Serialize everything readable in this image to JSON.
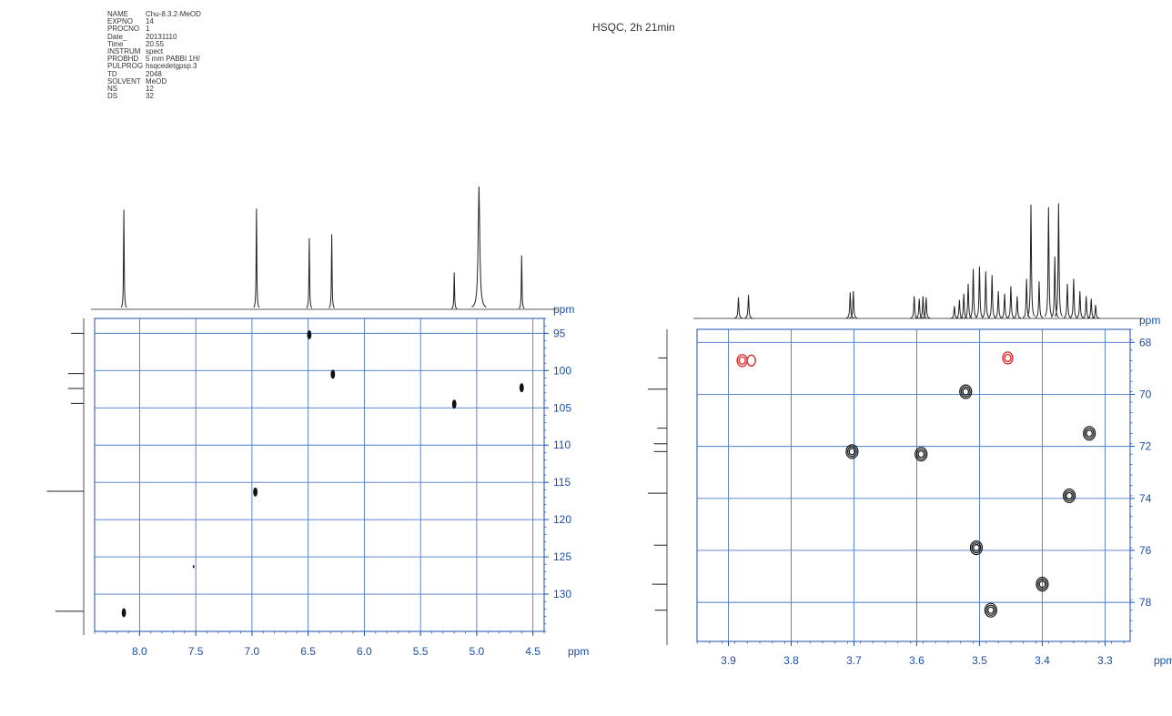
{
  "header": {
    "title": "HSQC, 2h 21min",
    "params": [
      {
        "key": "NAME",
        "value": "Chu-8.3.2-MeOD"
      },
      {
        "key": "EXPNO",
        "value": "14"
      },
      {
        "key": "PROCNO",
        "value": "1"
      },
      {
        "key": "Date_",
        "value": "20131110"
      },
      {
        "key": "Time",
        "value": "20.55"
      },
      {
        "key": "INSTRUM",
        "value": "spect"
      },
      {
        "key": "PROBHD",
        "value": "5 mm PABBI 1H/"
      },
      {
        "key": "PULPROG",
        "value": "hsqcedetgpsp.3"
      },
      {
        "key": "TD",
        "value": "2048"
      },
      {
        "key": "SOLVENT",
        "value": "MeOD"
      },
      {
        "key": "NS",
        "value": "12"
      },
      {
        "key": "DS",
        "value": "32"
      }
    ]
  },
  "colors": {
    "axis": "#1a4fa8",
    "grid": "#4a78c8",
    "contour": "#111111",
    "negative_contour": "#e03030",
    "trace": "#222222"
  },
  "chart_data": [
    {
      "type": "scatter",
      "xlabel": "ppm",
      "ylabel": "ppm",
      "xlim": [
        8.4,
        4.4
      ],
      "ylim": [
        93,
        135
      ],
      "xticks": [
        8.0,
        7.5,
        7.0,
        6.5,
        6.0,
        5.5,
        5.0,
        4.5
      ],
      "xtick_labels": [
        "8.0",
        "7.5",
        "7.0",
        "6.5",
        "6.0",
        "5.5",
        "5.0",
        "4.5"
      ],
      "yticks": [
        95,
        100,
        105,
        110,
        115,
        120,
        125,
        130
      ],
      "ytick_labels": [
        "95",
        "100",
        "105",
        "110",
        "115",
        "120",
        "125",
        "130"
      ],
      "grid": true,
      "series": [
        {
          "points": [
            {
              "x": 8.14,
              "y": 132.5
            },
            {
              "x": 6.97,
              "y": 116.3
            },
            {
              "x": 6.49,
              "y": 95.2
            },
            {
              "x": 6.28,
              "y": 100.5
            },
            {
              "x": 5.2,
              "y": 104.5
            },
            {
              "x": 4.6,
              "y": 102.3
            },
            {
              "x": 7.52,
              "y": 126.3
            }
          ]
        }
      ],
      "proton_trace": [
        {
          "x": 8.14,
          "h": 0.81
        },
        {
          "x": 6.96,
          "h": 0.82
        },
        {
          "x": 6.49,
          "h": 0.58
        },
        {
          "x": 6.29,
          "h": 0.61
        },
        {
          "x": 5.2,
          "h": 0.3
        },
        {
          "x": 4.98,
          "h": 1.0
        },
        {
          "x": 4.6,
          "h": 0.44
        }
      ],
      "carbon_trace": [
        {
          "y": 95.0,
          "h": 0.18
        },
        {
          "y": 100.4,
          "h": 0.22
        },
        {
          "y": 102.4,
          "h": 0.22
        },
        {
          "y": 104.4,
          "h": 0.18
        },
        {
          "y": 116.2,
          "h": 0.52
        },
        {
          "y": 132.3,
          "h": 0.4
        }
      ]
    },
    {
      "type": "scatter",
      "xlabel": "ppm",
      "ylabel": "ppm",
      "xlim": [
        3.95,
        3.26
      ],
      "ylim": [
        67.5,
        79.5
      ],
      "xticks": [
        3.9,
        3.8,
        3.7,
        3.6,
        3.5,
        3.4,
        3.3
      ],
      "xtick_labels": [
        "3.9",
        "3.8",
        "3.7",
        "3.6",
        "3.5",
        "3.4",
        "3.3"
      ],
      "yticks": [
        68,
        70,
        72,
        74,
        76,
        78
      ],
      "ytick_labels": [
        "68",
        "70",
        "72",
        "74",
        "76",
        "78"
      ],
      "grid": true,
      "series": [
        {
          "points": [
            {
              "x": 3.522,
              "y": 69.9
            },
            {
              "x": 3.325,
              "y": 71.5
            },
            {
              "x": 3.703,
              "y": 72.2
            },
            {
              "x": 3.593,
              "y": 72.3
            },
            {
              "x": 3.357,
              "y": 73.9
            },
            {
              "x": 3.505,
              "y": 75.9
            },
            {
              "x": 3.4,
              "y": 77.3
            },
            {
              "x": 3.482,
              "y": 78.3
            }
          ]
        },
        {
          "points": [
            {
              "x": 3.878,
              "y": 68.7
            },
            {
              "x": 3.455,
              "y": 68.6
            }
          ]
        }
      ],
      "proton_trace": [
        {
          "x": 3.884,
          "h": 0.17
        },
        {
          "x": 3.868,
          "h": 0.19
        },
        {
          "x": 3.706,
          "h": 0.21
        },
        {
          "x": 3.701,
          "h": 0.22
        },
        {
          "x": 3.604,
          "h": 0.18
        },
        {
          "x": 3.596,
          "h": 0.16
        },
        {
          "x": 3.59,
          "h": 0.18
        },
        {
          "x": 3.585,
          "h": 0.17
        },
        {
          "x": 3.54,
          "h": 0.1
        },
        {
          "x": 3.532,
          "h": 0.15
        },
        {
          "x": 3.525,
          "h": 0.2
        },
        {
          "x": 3.518,
          "h": 0.28
        },
        {
          "x": 3.51,
          "h": 0.4
        },
        {
          "x": 3.5,
          "h": 0.42
        },
        {
          "x": 3.49,
          "h": 0.38
        },
        {
          "x": 3.48,
          "h": 0.35
        },
        {
          "x": 3.47,
          "h": 0.22
        },
        {
          "x": 3.46,
          "h": 0.2
        },
        {
          "x": 3.45,
          "h": 0.26
        },
        {
          "x": 3.44,
          "h": 0.18
        },
        {
          "x": 3.425,
          "h": 0.32
        },
        {
          "x": 3.418,
          "h": 0.92
        },
        {
          "x": 3.405,
          "h": 0.3
        },
        {
          "x": 3.39,
          "h": 0.9
        },
        {
          "x": 3.38,
          "h": 0.5
        },
        {
          "x": 3.374,
          "h": 0.93
        },
        {
          "x": 3.36,
          "h": 0.28
        },
        {
          "x": 3.35,
          "h": 0.32
        },
        {
          "x": 3.34,
          "h": 0.22
        },
        {
          "x": 3.33,
          "h": 0.18
        },
        {
          "x": 3.322,
          "h": 0.16
        },
        {
          "x": 3.315,
          "h": 0.11
        }
      ],
      "carbon_trace": [
        {
          "y": 68.6,
          "h": 0.2
        },
        {
          "y": 69.8,
          "h": 0.44
        },
        {
          "y": 71.3,
          "h": 0.22
        },
        {
          "y": 71.9,
          "h": 0.3
        },
        {
          "y": 72.2,
          "h": 0.3
        },
        {
          "y": 73.8,
          "h": 0.44
        },
        {
          "y": 75.8,
          "h": 0.3
        },
        {
          "y": 77.3,
          "h": 0.34
        },
        {
          "y": 78.3,
          "h": 0.28
        }
      ]
    }
  ]
}
